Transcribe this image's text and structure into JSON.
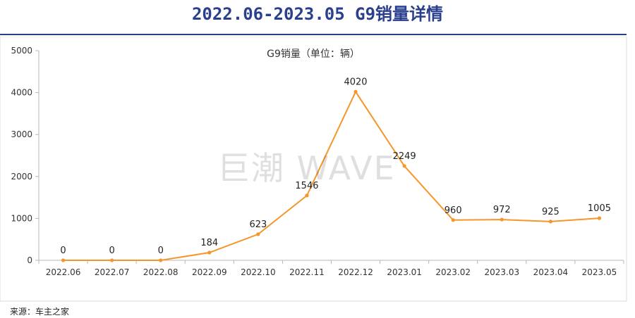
{
  "header": {
    "title": "2022.06-2023.05 G9销量详情"
  },
  "watermark": "巨潮 WAVE",
  "source": "来源：车主之家",
  "chart_data": {
    "type": "line",
    "title": "G9销量（单位：辆）",
    "xlabel": "",
    "ylabel": "",
    "categories": [
      "2022.06",
      "2022.07",
      "2022.08",
      "2022.09",
      "2022.10",
      "2022.11",
      "2022.12",
      "2023.01",
      "2023.02",
      "2023.03",
      "2023.04",
      "2023.05"
    ],
    "values": [
      0,
      0,
      0,
      184,
      623,
      1546,
      4020,
      2249,
      960,
      972,
      925,
      1005
    ],
    "ylim": [
      0,
      5000
    ],
    "yticks": [
      0,
      1000,
      2000,
      3000,
      4000,
      5000
    ],
    "grid": false,
    "legend": "none",
    "line_color": "#f5962a",
    "axis_color": "#b7b7b7"
  }
}
